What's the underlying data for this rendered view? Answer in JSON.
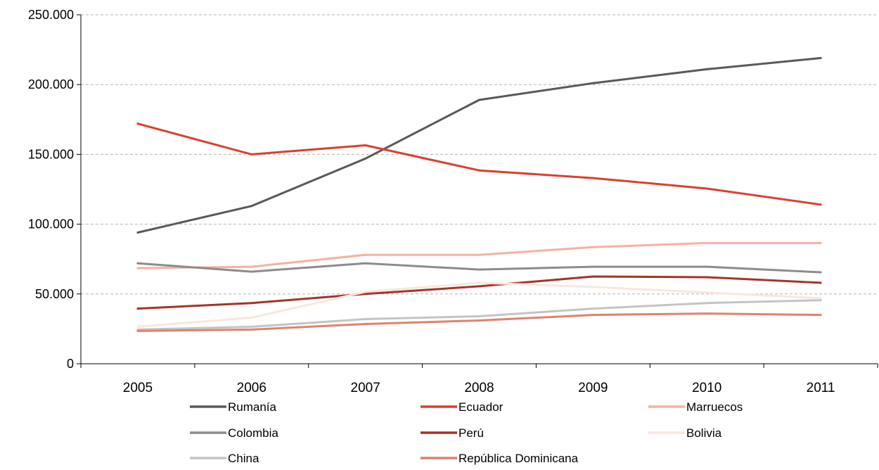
{
  "chart_data": {
    "type": "line",
    "title": "",
    "xlabel": "",
    "ylabel": "",
    "categories": [
      "2005",
      "2006",
      "2007",
      "2008",
      "2009",
      "2010",
      "2011"
    ],
    "y_ticks": [
      "0",
      "50.000",
      "100.000",
      "150.000",
      "200.000",
      "250.000"
    ],
    "ylim": [
      0,
      250000
    ],
    "grid": "horizontal dashed",
    "legend_position": "bottom",
    "series": [
      {
        "name": "Rumanía",
        "color": "#595959",
        "values": [
          94000,
          113000,
          147000,
          189000,
          201000,
          211000,
          219000
        ]
      },
      {
        "name": "Ecuador",
        "color": "#d9402f",
        "values": [
          172000,
          150000,
          156500,
          138500,
          133000,
          125500,
          114000
        ]
      },
      {
        "name": "Marruecos",
        "color": "#f2b3a0",
        "values": [
          68500,
          69500,
          78000,
          78000,
          83500,
          86500,
          86500
        ]
      },
      {
        "name": "Colombia",
        "color": "#8c8c8c",
        "values": [
          72000,
          66000,
          72000,
          67500,
          69500,
          69500,
          65500
        ]
      },
      {
        "name": "Perú",
        "color": "#a3352a",
        "values": [
          39500,
          43500,
          50000,
          55500,
          62500,
          62000,
          58000
        ]
      },
      {
        "name": "Bolivia",
        "color": "#fae6df",
        "values": [
          26500,
          33000,
          51500,
          58000,
          55000,
          51000,
          47000
        ]
      },
      {
        "name": "China",
        "color": "#c4c4c4",
        "values": [
          24500,
          26500,
          32000,
          34000,
          39500,
          43500,
          45500
        ]
      },
      {
        "name": "República Dominicana",
        "color": "#e0826c",
        "values": [
          23500,
          24500,
          28500,
          31000,
          35000,
          36000,
          35000
        ]
      }
    ]
  }
}
